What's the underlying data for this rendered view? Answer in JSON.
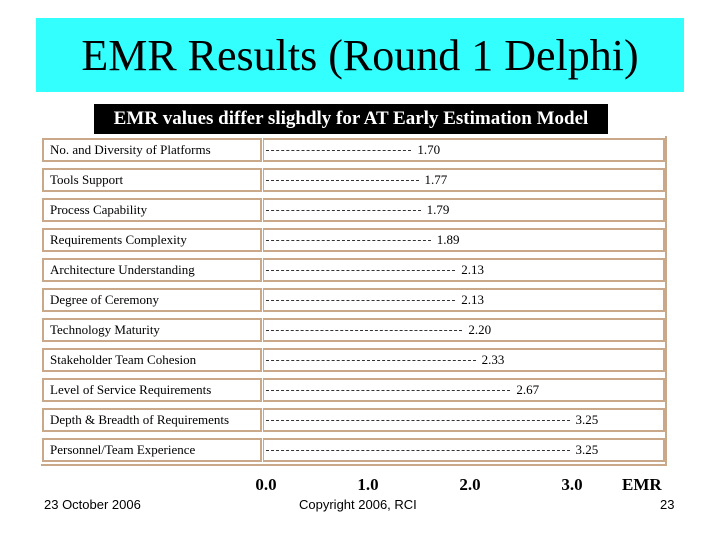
{
  "header": {
    "title": "EMR Results (Round 1 Delphi)",
    "title_bg": "#33ffff"
  },
  "chart_data": {
    "type": "bar",
    "title": "EMR values differ slighdly for AT Early Estimation Model",
    "xlabel": "EMR",
    "xlim": [
      0,
      3.5
    ],
    "xticks": [
      "0.0",
      "1.0",
      "2.0",
      "3.0"
    ],
    "categories": [
      "No. and Diversity of Platforms",
      "Tools Support",
      "Process Capability",
      "Requirements Complexity",
      "Architecture Understanding",
      "Degree of Ceremony",
      "Technology Maturity",
      "Stakeholder Team Cohesion",
      "Level of Service Requirements",
      "Depth & Breadth of Requirements",
      "Personnel/Team Experience"
    ],
    "values": [
      1.7,
      1.77,
      1.79,
      1.89,
      2.13,
      2.13,
      2.2,
      2.33,
      2.67,
      3.25,
      3.25
    ],
    "value_labels": [
      "1.70",
      "1.77",
      "1.79",
      "1.89",
      "2.13",
      "2.13",
      "2.20",
      "2.33",
      "2.67",
      "3.25",
      "3.25"
    ],
    "border_color": "#c9a98a"
  },
  "footer": {
    "date": "23 October 2006",
    "copyright": "Copyright 2006, RCI",
    "page": "23"
  }
}
